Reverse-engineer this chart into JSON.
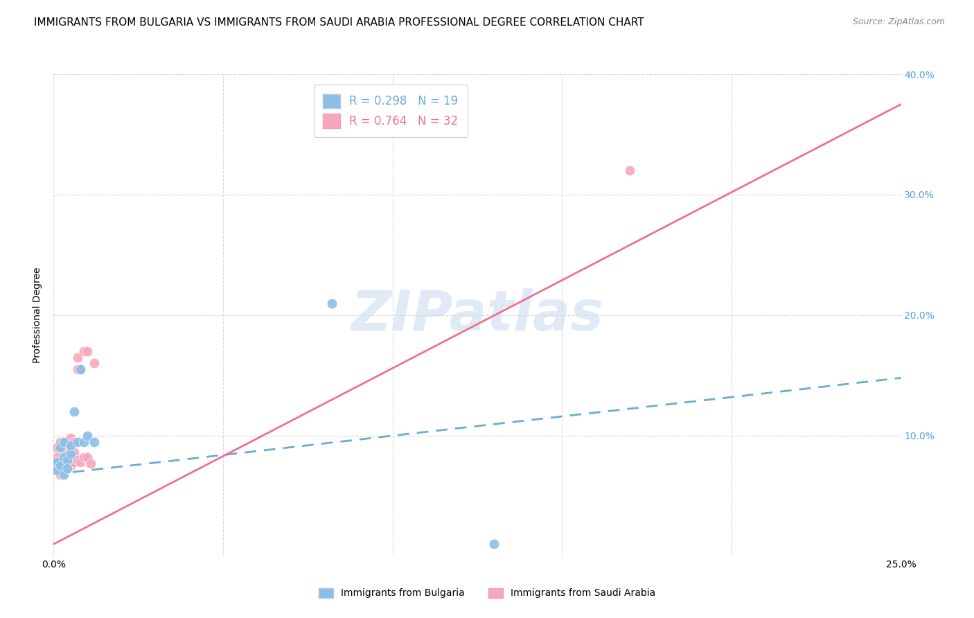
{
  "title": "IMMIGRANTS FROM BULGARIA VS IMMIGRANTS FROM SAUDI ARABIA PROFESSIONAL DEGREE CORRELATION CHART",
  "source": "Source: ZipAtlas.com",
  "xlabel": "",
  "ylabel": "Professional Degree",
  "xlim": [
    0.0,
    0.25
  ],
  "ylim": [
    0.0,
    0.4
  ],
  "xticks": [
    0.0,
    0.05,
    0.1,
    0.15,
    0.2,
    0.25
  ],
  "yticks": [
    0.0,
    0.1,
    0.2,
    0.3,
    0.4
  ],
  "xtick_labels_left": [
    "0.0%",
    "",
    "",
    "",
    "",
    ""
  ],
  "xtick_labels_right": [
    "25.0%"
  ],
  "ytick_labels_right": [
    "",
    "10.0%",
    "20.0%",
    "30.0%",
    "40.0%"
  ],
  "blue_scatter_color": "#8bbfe8",
  "pink_scatter_color": "#f5a8bc",
  "blue_line_color": "#6aabd6",
  "pink_line_color": "#f07090",
  "R_blue": 0.298,
  "N_blue": 19,
  "R_pink": 0.764,
  "N_pink": 32,
  "legend_label_blue": "Immigrants from Bulgaria",
  "legend_label_pink": "Immigrants from Saudi Arabia",
  "watermark_text": "ZIPatlas",
  "background_color": "#ffffff",
  "grid_color": "#d8d8d8",
  "title_fontsize": 11,
  "tick_label_color_right": "#5b9bd5",
  "blue_scatter_x": [
    0.001,
    0.001,
    0.002,
    0.002,
    0.003,
    0.003,
    0.003,
    0.004,
    0.004,
    0.005,
    0.005,
    0.006,
    0.007,
    0.008,
    0.009,
    0.01,
    0.012,
    0.082,
    0.13
  ],
  "blue_scatter_y": [
    0.072,
    0.078,
    0.075,
    0.09,
    0.082,
    0.068,
    0.095,
    0.08,
    0.073,
    0.085,
    0.092,
    0.12,
    0.095,
    0.155,
    0.095,
    0.1,
    0.095,
    0.21,
    0.01
  ],
  "pink_scatter_x": [
    0.001,
    0.001,
    0.001,
    0.002,
    0.002,
    0.002,
    0.003,
    0.003,
    0.003,
    0.003,
    0.004,
    0.004,
    0.004,
    0.005,
    0.005,
    0.005,
    0.005,
    0.006,
    0.006,
    0.006,
    0.007,
    0.007,
    0.007,
    0.008,
    0.008,
    0.009,
    0.009,
    0.01,
    0.011,
    0.012,
    0.17,
    0.01
  ],
  "pink_scatter_y": [
    0.075,
    0.082,
    0.09,
    0.068,
    0.078,
    0.095,
    0.07,
    0.075,
    0.088,
    0.095,
    0.073,
    0.078,
    0.085,
    0.075,
    0.082,
    0.09,
    0.098,
    0.078,
    0.086,
    0.095,
    0.08,
    0.155,
    0.165,
    0.078,
    0.155,
    0.082,
    0.17,
    0.082,
    0.077,
    0.16,
    0.32,
    0.17
  ],
  "blue_trend_x": [
    0.0,
    0.25
  ],
  "blue_trend_y": [
    0.068,
    0.148
  ],
  "pink_trend_x": [
    0.0,
    0.25
  ],
  "pink_trend_y": [
    0.01,
    0.375
  ]
}
